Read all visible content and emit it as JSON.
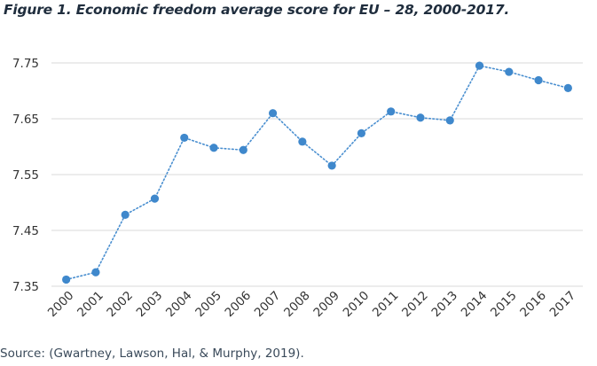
{
  "figure": {
    "title": "Figure 1. Economic freedom average score for EU – 28, 2000-2017.",
    "source": "Source: (Gwartney, Lawson, Hal, & Murphy, 2019)."
  },
  "chart_data": {
    "type": "line",
    "title": "Figure 1. Economic freedom average score for EU – 28, 2000-2017.",
    "xlabel": "",
    "ylabel": "",
    "x": [
      "2000",
      "2001",
      "2002",
      "2003",
      "2004",
      "2005",
      "2006",
      "2007",
      "2008",
      "2009",
      "2010",
      "2011",
      "2012",
      "2013",
      "2014",
      "2015",
      "2016",
      "2017"
    ],
    "series": [
      {
        "values": [
          7.362,
          7.375,
          7.478,
          7.507,
          7.616,
          7.598,
          7.594,
          7.66,
          7.609,
          7.566,
          7.624,
          7.663,
          7.652,
          7.647,
          7.745,
          7.734,
          7.719,
          7.705
        ]
      }
    ],
    "yticks": [
      "7.35",
      "7.45",
      "7.55",
      "7.65",
      "7.75"
    ],
    "ylim": [
      7.35,
      7.75
    ],
    "grid": true,
    "line_style": "dotted",
    "colors": {
      "line": "#4a8fd0",
      "marker": "#3f88cc",
      "grid": "#d9d9d9"
    }
  }
}
